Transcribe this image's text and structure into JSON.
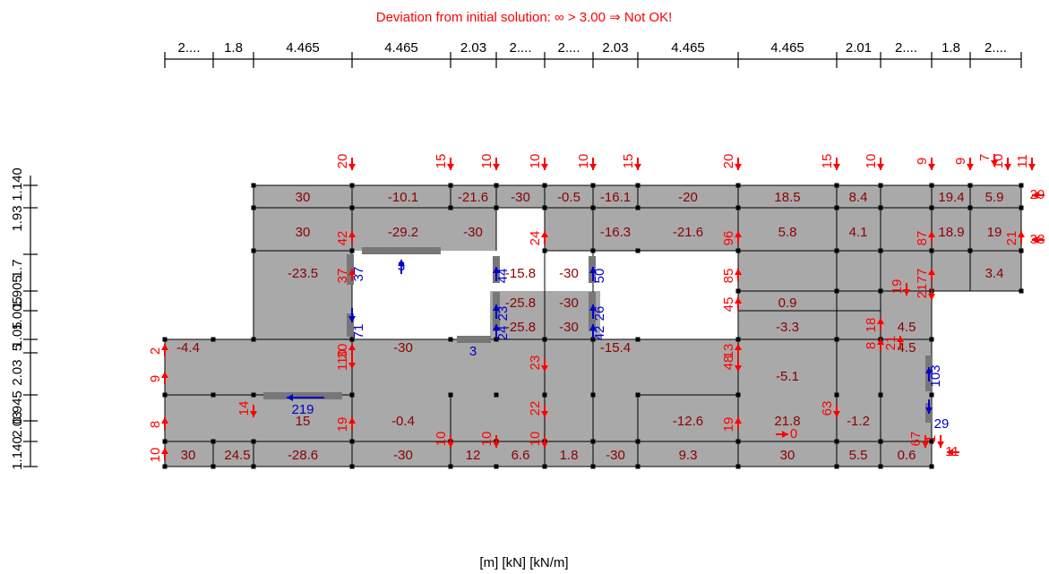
{
  "title": "Deviation from initial solution: ∞ > 3.00 ⇒ Not OK!",
  "units_label": "[m] [kN] [kN/m]",
  "colors": {
    "title": "#ff0000",
    "slab": "#a9a9a9",
    "edge": "#000000",
    "red_force": "#ff0000",
    "blue_force": "#0000cc",
    "slab_label": "#8b0000"
  },
  "top_dimensions": [
    "2....",
    "1.8",
    "4.465",
    "4.465",
    "2.03",
    "2....",
    "2....",
    "2.03",
    "4.465",
    "4.465",
    "2.01",
    "2....",
    "1.8",
    "2...."
  ],
  "left_dimensions": [
    "1.140",
    "1.93",
    "1.7",
    "1.905",
    "1.005",
    "1.05",
    "5",
    "2.03",
    "0.945",
    "2.03",
    "1.140"
  ],
  "slab_values": [
    "30",
    "-10.1",
    "-21.6",
    "-30",
    "-0.5",
    "-16.1",
    "-20",
    "18.5",
    "8.4",
    "19.4",
    "5.9",
    "30",
    "-29.2",
    "-30",
    "-16.3",
    "-21.6",
    "5.8",
    "4.1",
    "18.9",
    "19",
    "-23.5",
    "-15.8",
    "-30",
    "3.4",
    "-25.8",
    "-30",
    "0.9",
    "-25.8",
    "-30",
    "-3.3",
    "4.5",
    "-4.4",
    "-30",
    "-15.4",
    "4.5",
    "-5.1",
    "15",
    "-0.4",
    "-12.6",
    "21.8",
    "-1.2",
    "30",
    "24.5",
    "-28.6",
    "-30",
    "12",
    "6.6",
    "1.8",
    "-30",
    "9.3",
    "30",
    "5.5",
    "0.6"
  ],
  "red_forces": [
    "20",
    "15",
    "10",
    "10",
    "10",
    "15",
    "20",
    "15",
    "10",
    "9",
    "9",
    "7",
    "10",
    "11",
    "29",
    "38",
    "42",
    "24",
    "96",
    "87",
    "21",
    "37",
    "85",
    "77",
    "45",
    "21",
    "19",
    "18",
    "21",
    "8",
    "2",
    "30",
    "13",
    "110",
    "9",
    "23",
    "48",
    "8",
    "14",
    "19",
    "22",
    "19",
    "63",
    "10",
    "10",
    "10",
    "10",
    "67",
    "1",
    "11",
    "0"
  ],
  "blue_forces": [
    "3",
    "37",
    "44",
    "50",
    "23",
    "26",
    "71",
    "24",
    "42",
    "3",
    "219",
    "103",
    "29"
  ]
}
